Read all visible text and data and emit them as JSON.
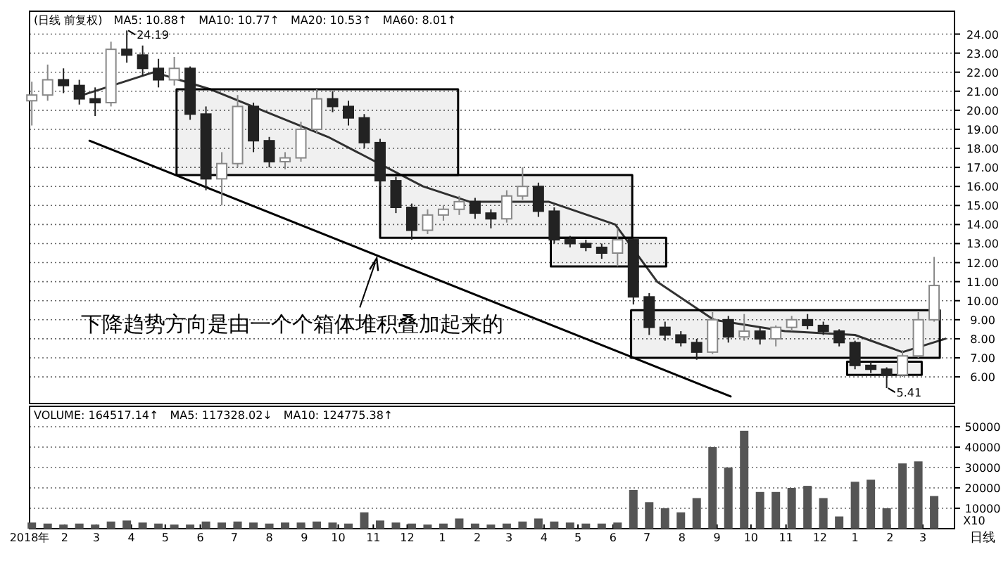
{
  "chart_data": [
    {
      "type": "candlestick",
      "xlim": [
        "2018-01-01",
        "2020-03-29"
      ],
      "ylim": [
        4.6,
        25.2
      ],
      "tick_labels": "y",
      "grid": "y",
      "yticks": [
        {
          "value": 6,
          "label": "6.00"
        },
        {
          "value": 7,
          "label": "7.00"
        },
        {
          "value": 8,
          "label": "8.00"
        },
        {
          "value": 9,
          "label": "9.00"
        },
        {
          "value": 10,
          "label": "10.00"
        },
        {
          "value": 11,
          "label": "11.00"
        },
        {
          "value": 12,
          "label": "12.00"
        },
        {
          "value": 13,
          "label": "13.00"
        },
        {
          "value": 14,
          "label": "14.00"
        },
        {
          "value": 15,
          "label": "15.00"
        },
        {
          "value": 16,
          "label": "16.00"
        },
        {
          "value": 17,
          "label": "17.00"
        },
        {
          "value": 18,
          "label": "18.00"
        },
        {
          "value": 19,
          "label": "19.00"
        },
        {
          "value": 20,
          "label": "20.00"
        },
        {
          "value": 21,
          "label": "21.00"
        },
        {
          "value": 22,
          "label": "22.00"
        },
        {
          "value": 23,
          "label": "23.00"
        },
        {
          "value": 24,
          "label": "24.00"
        }
      ],
      "x": [
        "2018-01-03",
        "2018-01-17",
        "2018-01-31",
        "2018-02-14",
        "2018-02-28",
        "2018-03-14",
        "2018-03-28",
        "2018-04-11",
        "2018-04-25",
        "2018-05-09",
        "2018-05-23",
        "2018-06-06",
        "2018-06-20",
        "2018-07-04",
        "2018-07-18",
        "2018-08-01",
        "2018-08-15",
        "2018-08-29",
        "2018-09-12",
        "2018-09-26",
        "2018-10-10",
        "2018-10-24",
        "2018-11-07",
        "2018-11-21",
        "2018-12-05",
        "2018-12-19",
        "2019-01-02",
        "2019-01-16",
        "2019-01-30",
        "2019-02-13",
        "2019-02-27",
        "2019-03-13",
        "2019-03-27",
        "2019-04-10",
        "2019-04-24",
        "2019-05-08",
        "2019-05-22",
        "2019-06-05",
        "2019-06-19",
        "2019-07-03",
        "2019-07-17",
        "2019-07-31",
        "2019-08-14",
        "2019-08-28",
        "2019-09-11",
        "2019-09-25",
        "2019-10-09",
        "2019-10-23",
        "2019-11-06",
        "2019-11-20",
        "2019-12-04",
        "2019-12-18",
        "2020-01-01",
        "2020-01-15",
        "2020-01-29",
        "2020-02-12",
        "2020-02-26",
        "2020-03-11"
      ],
      "ohlc": [
        [
          20.5,
          21.5,
          19.2,
          20.8
        ],
        [
          20.8,
          22.4,
          20.5,
          21.6
        ],
        [
          21.6,
          22.2,
          20.9,
          21.3
        ],
        [
          21.3,
          21.6,
          20.3,
          20.6
        ],
        [
          20.6,
          21.2,
          19.7,
          20.4
        ],
        [
          20.4,
          23.6,
          20.2,
          23.2
        ],
        [
          23.2,
          24.19,
          22.5,
          22.9
        ],
        [
          22.9,
          23.4,
          21.8,
          22.2
        ],
        [
          22.2,
          22.7,
          21.2,
          21.6
        ],
        [
          21.6,
          22.8,
          21.3,
          22.2
        ],
        [
          22.2,
          22.3,
          19.5,
          19.8
        ],
        [
          19.8,
          20.2,
          15.8,
          16.4
        ],
        [
          16.4,
          17.8,
          15.0,
          17.2
        ],
        [
          17.2,
          20.8,
          17.0,
          20.2
        ],
        [
          20.2,
          20.4,
          17.8,
          18.4
        ],
        [
          18.4,
          18.6,
          17.0,
          17.3
        ],
        [
          17.3,
          17.8,
          16.9,
          17.5
        ],
        [
          17.5,
          19.4,
          17.3,
          19.0
        ],
        [
          19.0,
          21.1,
          18.8,
          20.6
        ],
        [
          20.6,
          21.0,
          19.9,
          20.2
        ],
        [
          20.2,
          20.5,
          19.2,
          19.6
        ],
        [
          19.6,
          19.8,
          18.0,
          18.3
        ],
        [
          18.3,
          18.5,
          16.0,
          16.3
        ],
        [
          16.3,
          16.5,
          14.6,
          14.9
        ],
        [
          14.9,
          15.1,
          13.2,
          13.7
        ],
        [
          13.7,
          14.8,
          13.5,
          14.5
        ],
        [
          14.5,
          15.0,
          14.2,
          14.8
        ],
        [
          14.8,
          15.5,
          14.5,
          15.2
        ],
        [
          15.2,
          15.4,
          14.3,
          14.6
        ],
        [
          14.6,
          14.8,
          13.8,
          14.3
        ],
        [
          14.3,
          15.8,
          14.1,
          15.5
        ],
        [
          15.5,
          17.0,
          15.3,
          16.0
        ],
        [
          16.0,
          16.2,
          14.4,
          14.7
        ],
        [
          14.7,
          14.9,
          13.0,
          13.2
        ],
        [
          13.2,
          13.4,
          12.8,
          13.0
        ],
        [
          13.0,
          13.2,
          12.6,
          12.8
        ],
        [
          12.8,
          13.0,
          12.2,
          12.5
        ],
        [
          12.5,
          13.8,
          11.8,
          13.2
        ],
        [
          13.2,
          13.3,
          9.8,
          10.2
        ],
        [
          10.2,
          10.4,
          8.2,
          8.6
        ],
        [
          8.6,
          8.9,
          7.9,
          8.2
        ],
        [
          8.2,
          8.4,
          7.6,
          7.8
        ],
        [
          7.8,
          8.0,
          6.9,
          7.3
        ],
        [
          7.3,
          9.4,
          7.2,
          9.0
        ],
        [
          9.0,
          9.2,
          7.8,
          8.1
        ],
        [
          8.1,
          9.3,
          7.9,
          8.4
        ],
        [
          8.4,
          8.6,
          7.7,
          8.0
        ],
        [
          8.0,
          8.7,
          7.6,
          8.6
        ],
        [
          8.6,
          9.2,
          8.4,
          9.0
        ],
        [
          9.0,
          9.3,
          8.5,
          8.7
        ],
        [
          8.7,
          8.9,
          8.2,
          8.4
        ],
        [
          8.4,
          8.5,
          7.6,
          7.8
        ],
        [
          7.8,
          7.9,
          6.4,
          6.6
        ],
        [
          6.6,
          6.8,
          6.2,
          6.4
        ],
        [
          6.4,
          6.5,
          5.41,
          6.1
        ],
        [
          6.1,
          7.4,
          6.0,
          7.1
        ],
        [
          7.1,
          9.4,
          7.0,
          9.0
        ],
        [
          9.0,
          12.3,
          8.9,
          10.8
        ]
      ],
      "series": [
        {
          "type": "line",
          "color": "#333333",
          "x": [
            "2018-02-17",
            "2018-04-21",
            "2018-06-10",
            "2018-09-22",
            "2018-12-15",
            "2019-01-25",
            "2019-04-05",
            "2019-06-03",
            "2019-07-10",
            "2019-08-29",
            "2019-10-31",
            "2020-01-01",
            "2020-02-12",
            "2020-03-21"
          ],
          "values": [
            20.8,
            22.0,
            21.1,
            18.6,
            16.0,
            15.2,
            15.2,
            14.0,
            11.0,
            9.0,
            8.4,
            8.2,
            7.3,
            8.0
          ]
        },
        {
          "type": "line",
          "color": "#000000",
          "x": [
            "2018-05-11",
            "2019-01-15"
          ],
          "values": [
            null,
            null
          ],
          "lower": [
            16.6,
            16.6
          ],
          "upper": [
            21.1,
            21.1
          ]
        },
        {
          "type": "line",
          "color": "#000000",
          "x": [
            "2018-11-07",
            "2019-06-18"
          ],
          "values": [
            null,
            null
          ],
          "lower": [
            13.3,
            13.3
          ],
          "upper": [
            16.6,
            16.6
          ]
        },
        {
          "type": "line",
          "color": "#000000",
          "x": [
            "2019-04-07",
            "2019-07-18"
          ],
          "values": [
            null,
            null
          ],
          "lower": [
            11.8,
            11.8
          ],
          "upper": [
            13.3,
            13.3
          ]
        },
        {
          "type": "line",
          "color": "#000000",
          "x": [
            "2019-06-17",
            "2020-03-16"
          ],
          "values": [
            null,
            null
          ],
          "lower": [
            7.0,
            7.0
          ],
          "upper": [
            9.5,
            9.5
          ]
        },
        {
          "type": "line",
          "color": "#000000",
          "x": [
            "2019-12-25",
            "2020-02-29"
          ],
          "values": [
            null,
            null
          ],
          "lower": [
            6.1,
            6.1
          ],
          "upper": [
            6.8,
            6.8
          ]
        },
        {
          "type": "line",
          "color": "#000000",
          "x": [
            "2018-02-23",
            "2019-09-13"
          ],
          "values": [
            18.4,
            4.97
          ]
        }
      ],
      "annotations": [
        "(日线 前复权)",
        "MA5: 10.88↑",
        "MA10: 10.77↑",
        "MA20: 10.53↑",
        "MA60: 8.01↑",
        {
          "text": "24.19",
          "x": "2018-03-28",
          "y": 24.19
        },
        {
          "text": "5.41",
          "x": "2020-01-29",
          "y": 5.41
        },
        {
          "text": "下降趋势方向是由一个个箱体堆积叠加起来的",
          "x": "2018-11-04",
          "y": 12.3
        }
      ]
    },
    {
      "type": "bar",
      "xlim": [
        "2018-01-01",
        "2020-03-29"
      ],
      "ylim": [
        0,
        60000
      ],
      "yticks": [
        10000,
        20000,
        30000,
        40000,
        50000
      ],
      "grid": "y",
      "ylabel": "X10",
      "xlabel": "日线",
      "xticks": [
        {
          "value": "2018-01-01",
          "label": "2018年"
        },
        {
          "value": "2018-02-01",
          "label": "2"
        },
        {
          "value": "2018-03-01",
          "label": "3"
        },
        {
          "value": "2018-04-01",
          "label": "4"
        },
        {
          "value": "2018-05-01",
          "label": "5"
        },
        {
          "value": "2018-06-01",
          "label": "6"
        },
        {
          "value": "2018-07-01",
          "label": "7"
        },
        {
          "value": "2018-08-01",
          "label": "8"
        },
        {
          "value": "2018-09-01",
          "label": "9"
        },
        {
          "value": "2018-10-01",
          "label": "10"
        },
        {
          "value": "2018-11-01",
          "label": "11"
        },
        {
          "value": "2018-12-01",
          "label": "12"
        },
        {
          "value": "2019-01-01",
          "label": "1"
        },
        {
          "value": "2019-02-01",
          "label": "2"
        },
        {
          "value": "2019-03-01",
          "label": "3"
        },
        {
          "value": "2019-04-01",
          "label": "4"
        },
        {
          "value": "2019-05-01",
          "label": "5"
        },
        {
          "value": "2019-06-01",
          "label": "6"
        },
        {
          "value": "2019-07-01",
          "label": "7"
        },
        {
          "value": "2019-08-01",
          "label": "8"
        },
        {
          "value": "2019-09-01",
          "label": "9"
        },
        {
          "value": "2019-10-01",
          "label": "10"
        },
        {
          "value": "2019-11-01",
          "label": "11"
        },
        {
          "value": "2019-12-01",
          "label": "12"
        },
        {
          "value": "2020-01-01",
          "label": "1"
        },
        {
          "value": "2020-02-01",
          "label": "2"
        },
        {
          "value": "2020-03-01",
          "label": "3"
        }
      ],
      "x": [
        "2018-01-03",
        "2018-01-17",
        "2018-01-31",
        "2018-02-14",
        "2018-02-28",
        "2018-03-14",
        "2018-03-28",
        "2018-04-11",
        "2018-04-25",
        "2018-05-09",
        "2018-05-23",
        "2018-06-06",
        "2018-06-20",
        "2018-07-04",
        "2018-07-18",
        "2018-08-01",
        "2018-08-15",
        "2018-08-29",
        "2018-09-12",
        "2018-09-26",
        "2018-10-10",
        "2018-10-24",
        "2018-11-07",
        "2018-11-21",
        "2018-12-05",
        "2018-12-19",
        "2019-01-02",
        "2019-01-16",
        "2019-01-30",
        "2019-02-13",
        "2019-02-27",
        "2019-03-13",
        "2019-03-27",
        "2019-04-10",
        "2019-04-24",
        "2019-05-08",
        "2019-05-22",
        "2019-06-05",
        "2019-06-19",
        "2019-07-03",
        "2019-07-17",
        "2019-07-31",
        "2019-08-14",
        "2019-08-28",
        "2019-09-11",
        "2019-09-25",
        "2019-10-09",
        "2019-10-23",
        "2019-11-06",
        "2019-11-20",
        "2019-12-04",
        "2019-12-18",
        "2020-01-01",
        "2020-01-15",
        "2020-01-29",
        "2020-02-12",
        "2020-02-26",
        "2020-03-11"
      ],
      "series": [
        {
          "color": "#555555",
          "values": [
            3000,
            2500,
            2000,
            2500,
            2000,
            3500,
            4000,
            3000,
            2500,
            2000,
            2000,
            3500,
            3000,
            3500,
            3000,
            2500,
            3000,
            3000,
            3500,
            3000,
            2500,
            8000,
            4000,
            3000,
            2500,
            2000,
            2500,
            5000,
            2500,
            2000,
            2500,
            3500,
            5000,
            3500,
            3000,
            2500,
            2500,
            3000,
            19000,
            13000,
            10000,
            8000,
            15000,
            40000,
            30000,
            48000,
            18000,
            18000,
            20000,
            21000,
            15000,
            6000,
            23000,
            24000,
            10000,
            32000,
            33000,
            16000
          ]
        }
      ],
      "annotations": [
        "VOLUME: 164517.14↑",
        "MA5: 117328.02↓",
        "MA10: 124775.38↑"
      ]
    }
  ]
}
